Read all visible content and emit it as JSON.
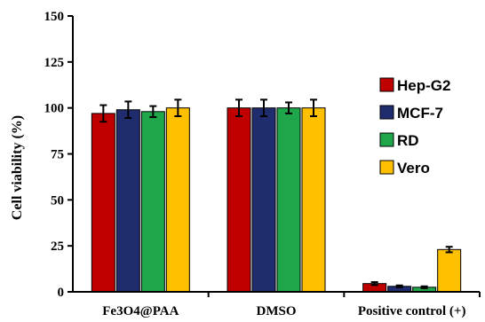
{
  "chart_data": {
    "type": "bar",
    "ylabel": "Cell viability (%)",
    "xlabel": "",
    "ylim": [
      0,
      150
    ],
    "yticks": [
      0,
      25,
      50,
      75,
      100,
      125,
      150
    ],
    "categories": [
      "Fe3O4@PAA",
      "DMSO",
      "Positive control (+)"
    ],
    "series": [
      {
        "name": "Hep-G2",
        "color": "#c00000",
        "values": [
          97,
          100,
          4.5
        ],
        "errors": [
          4.5,
          4.5,
          0.8
        ]
      },
      {
        "name": "MCF-7",
        "color": "#1f2d6e",
        "values": [
          99,
          100,
          3
        ],
        "errors": [
          4.5,
          4.5,
          0.5
        ]
      },
      {
        "name": "RD",
        "color": "#1fa64a",
        "values": [
          98,
          100,
          2.5
        ],
        "errors": [
          3.0,
          3.0,
          0.5
        ]
      },
      {
        "name": "Vero",
        "color": "#ffc000",
        "values": [
          100,
          100,
          23
        ],
        "errors": [
          4.5,
          4.5,
          1.5
        ]
      }
    ],
    "legend_position": "right"
  }
}
